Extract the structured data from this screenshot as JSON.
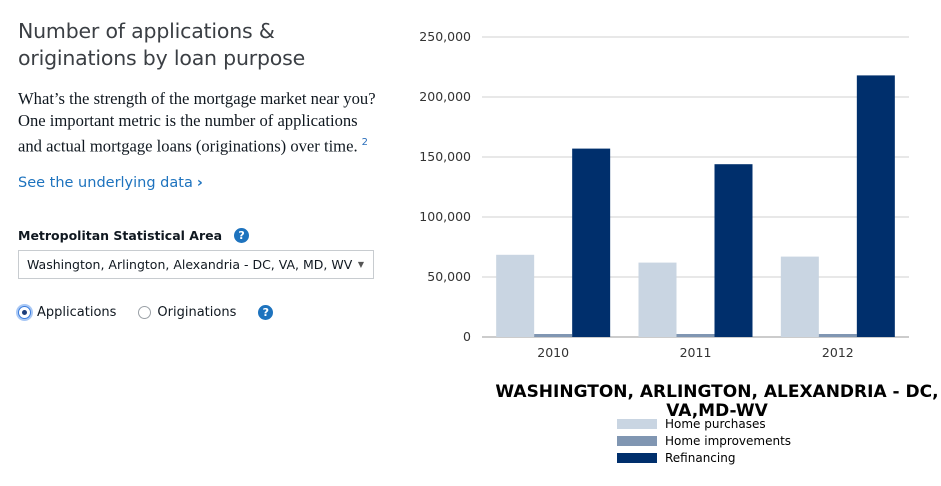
{
  "panel": {
    "title_line1": "Number of applications &",
    "title_line2": "originations by loan purpose",
    "description": "What’s the strength of the mortgage market near you? One important metric is the number of applications and actual mortgage loans (originations) over time.",
    "footnote": "2",
    "link_label": "See the underlying data",
    "link_chevron": "›",
    "msa_label": "Metropolitan Statistical Area",
    "help_icon": "?",
    "msa_selected": "Washington, Arlington, Alexandria - DC, VA, MD, WV",
    "radios": [
      {
        "label": "Applications",
        "checked": true
      },
      {
        "label": "Originations",
        "checked": false
      }
    ]
  },
  "colors": {
    "home_purchases": "#c9d5e2",
    "home_improvements": "#8096b2",
    "refinancing": "#002f6c",
    "link": "#1e73be"
  },
  "chart_data": {
    "type": "bar",
    "title_line1": "WASHINGTON, ARLINGTON, ALEXANDRIA - DC,",
    "title_line2": "VA,MD-WV",
    "categories": [
      "2010",
      "2011",
      "2012"
    ],
    "series": [
      {
        "name": "Home purchases",
        "values": [
          68500,
          62000,
          67000
        ]
      },
      {
        "name": "Home improvements",
        "values": [
          2500,
          2500,
          2500
        ]
      },
      {
        "name": "Refinancing",
        "values": [
          157000,
          144000,
          218000
        ]
      }
    ],
    "yticks": [
      0,
      50000,
      100000,
      150000,
      200000,
      250000
    ],
    "ytick_labels": [
      "0",
      "50,000",
      "100,000",
      "150,000",
      "200,000",
      "250,000"
    ],
    "ylim": [
      0,
      250000
    ],
    "grid": true,
    "legend_position": "bottom"
  }
}
